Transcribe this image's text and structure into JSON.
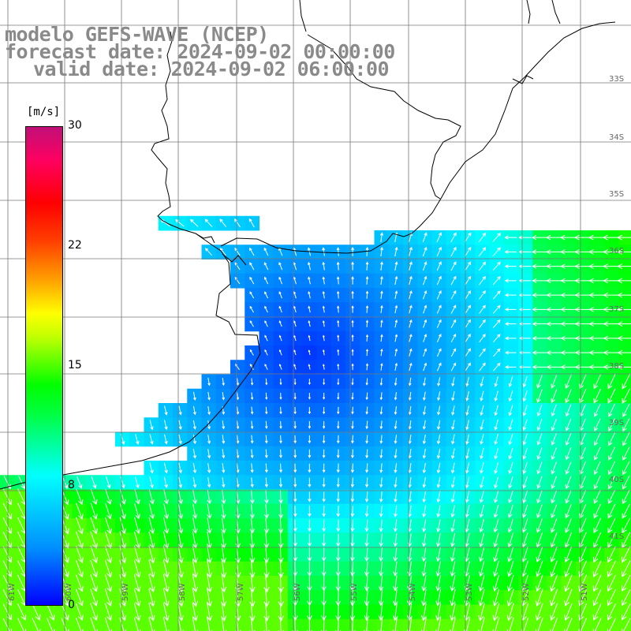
{
  "titles": {
    "model": "modelo GEFS-WAVE (NCEP)",
    "forecast": "forecast date: 2024-09-02 00:00:00",
    "valid": "valid date: 2024-09-02 06:00:00"
  },
  "colorbar": {
    "unit": "[m/s]",
    "ticks": [
      "30",
      "22",
      "15",
      "8",
      "0"
    ],
    "tick_values": [
      30,
      22,
      15,
      8,
      0
    ],
    "colors": [
      "#0000ff",
      "#00c8ff",
      "#00ffd0",
      "#00ff00",
      "#a8ff00",
      "#ffff00",
      "#ffa000",
      "#ff3000",
      "#ff0000",
      "#ff0050",
      "#c81070"
    ]
  },
  "lat_labels": [
    "33S",
    "34S",
    "35S",
    "36S",
    "37S",
    "38S",
    "39S",
    "40S",
    "41S"
  ],
  "lon_labels": [
    "61W",
    "60W",
    "59W",
    "58W",
    "57W",
    "56W",
    "55W",
    "54W",
    "53W",
    "52W",
    "51W"
  ],
  "colors": {
    "land": "#ffffff",
    "coast": "#000000",
    "grid": "#777777",
    "title": "#8a8a8a",
    "vector": "#ffffff"
  }
}
